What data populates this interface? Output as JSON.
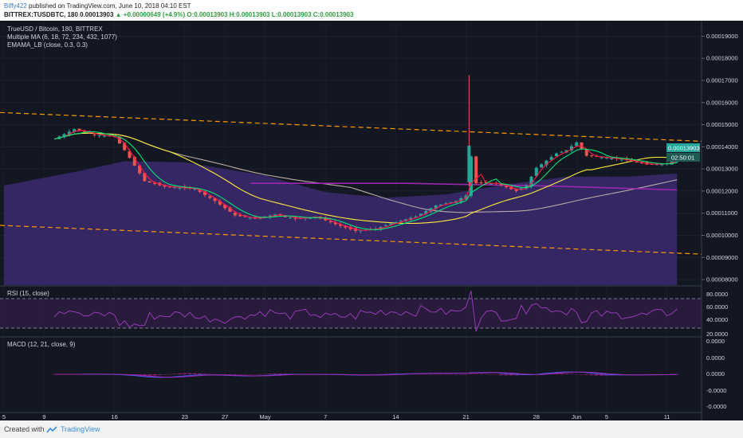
{
  "header": {
    "author": "Biffy422",
    "published": "published on TradingView.com, June 10, 2018 04:10 EST",
    "symbol_line": "BITTREX:TUSDBTC, 180  0.00013903",
    "change": "▲ +0.00000649 (+4.9%)",
    "ohlc": "O:0.00013903  H:0.00013903  L:0.00013903  C:0.00013903"
  },
  "legend": {
    "title": "TrueUSD / Bitcoin, 180, BITTREX",
    "ma": "Multiple MA (6, 18, 72, 234, 432, 1077)",
    "emama": "EMAMA_LB (close, 0.3, 0.3)"
  },
  "price_tag": {
    "value": "0.00013903",
    "countdown": "02:50:01"
  },
  "rsi": {
    "label": "RSI (15, close)",
    "ticks": [
      "80.0000",
      "60.0000",
      "40.0000",
      "20.0000"
    ]
  },
  "macd": {
    "label": "MACD (12, 21, close, 9)",
    "ticks": [
      "0.0000",
      "0.0000",
      "0.0000",
      "-0.0000",
      "-0.0000"
    ]
  },
  "footer": {
    "created": "Created with",
    "brand": "TradingView"
  },
  "colors": {
    "background": "#131722",
    "up": "#26a69a",
    "down": "#ef5350",
    "ma_fast": "#ff1744",
    "ma_mid": "#00e676",
    "ma_slow": "#ffeb3b",
    "ma_long": "#bcaaa4",
    "ma_purple": "#9c27b0",
    "channel": "#ff9800",
    "cloud": "#3b2a6e",
    "rsi_line": "#a33cc7",
    "macd_line": "#4a5cf0",
    "signal_line": "#9c27b0",
    "hist": "#8e1f73"
  },
  "chart_data": {
    "type": "candlestick",
    "title": "TrueUSD / Bitcoin, 180, BITTREX",
    "x_tick_labels": [
      "5",
      "9",
      "16",
      "23",
      "27",
      "May",
      "7",
      "14",
      "21",
      "28",
      "Jun",
      "5",
      "11"
    ],
    "y_tick_labels": [
      "0.00019000",
      "0.00018000",
      "0.00017000",
      "0.00016000",
      "0.00015000",
      "0.00014000",
      "0.00013000",
      "0.00012000",
      "0.00011000",
      "0.00010000",
      "0.00009000",
      "0.00008000"
    ],
    "ylim": [
      7.75e-05,
      0.000197
    ],
    "price_path": [
      [
        5,
        0.0001435
      ],
      [
        7,
        0.000148
      ],
      [
        9,
        0.0001455
      ],
      [
        11,
        0.0001445
      ],
      [
        12,
        0.0001385
      ],
      [
        14,
        0.0001245
      ],
      [
        16,
        0.000122
      ],
      [
        19,
        0.000121
      ],
      [
        21,
        0.0001155
      ],
      [
        23,
        0.000109
      ],
      [
        25,
        0.0001075
      ],
      [
        27,
        0.0001095
      ],
      [
        29,
        0.0001075
      ],
      [
        31,
        0.0001085
      ],
      [
        33,
        0.000105
      ],
      [
        35,
        0.000102
      ],
      [
        37,
        0.000103
      ],
      [
        39,
        0.000106
      ],
      [
        41,
        0.0001085
      ],
      [
        43,
        0.0001135
      ],
      [
        45,
        0.0001155
      ],
      [
        46,
        0.000118
      ],
      [
        46.3,
        0.0001405
      ],
      [
        47,
        0.0001235
      ],
      [
        49,
        0.0001235
      ],
      [
        51,
        0.00012
      ],
      [
        52,
        0.0001225
      ],
      [
        53,
        0.0001305
      ],
      [
        55,
        0.000137
      ],
      [
        56,
        0.0001385
      ],
      [
        57,
        0.000142
      ],
      [
        58,
        0.000136
      ],
      [
        60,
        0.000135
      ],
      [
        62,
        0.000134
      ],
      [
        64,
        0.000132
      ],
      [
        66,
        0.0001325
      ],
      [
        67,
        0.0001345
      ]
    ],
    "spike_high": 0.0001725,
    "rsi_levels": {
      "upper": 70,
      "lower": 30,
      "ylim": [
        15,
        90
      ]
    },
    "last_price": 0.00013903
  }
}
